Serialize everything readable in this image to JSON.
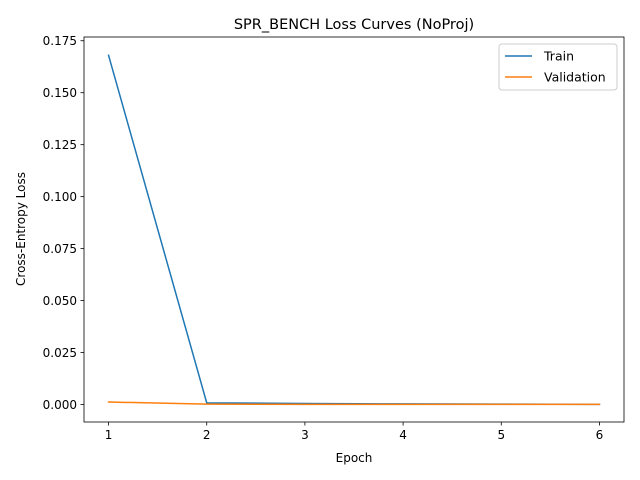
{
  "chart_data": {
    "type": "line",
    "title": "SPR_BENCH Loss Curves (NoProj)",
    "xlabel": "Epoch",
    "ylabel": "Cross-Entropy Loss",
    "x": [
      1,
      2,
      3,
      4,
      5,
      6
    ],
    "xlim": [
      0.75,
      6.25
    ],
    "ylim": [
      -0.0084,
      0.1768
    ],
    "xticks": [
      1,
      2,
      3,
      4,
      5,
      6
    ],
    "xtick_labels": [
      "1",
      "2",
      "3",
      "4",
      "5",
      "6"
    ],
    "yticks": [
      0.0,
      0.025,
      0.05,
      0.075,
      0.1,
      0.125,
      0.15,
      0.175
    ],
    "ytick_labels": [
      "0.000",
      "0.025",
      "0.050",
      "0.075",
      "0.100",
      "0.125",
      "0.150",
      "0.175"
    ],
    "grid": false,
    "legend_position": "top-right",
    "series": [
      {
        "name": "Train",
        "color": "#1f77b4",
        "values": [
          0.168,
          0.0008,
          0.0005,
          0.0003,
          0.0002,
          0.0001
        ]
      },
      {
        "name": "Validation",
        "color": "#ff7f0e",
        "values": [
          0.0012,
          0.0002,
          0.0001,
          8e-05,
          6e-05,
          5e-05
        ]
      }
    ]
  }
}
